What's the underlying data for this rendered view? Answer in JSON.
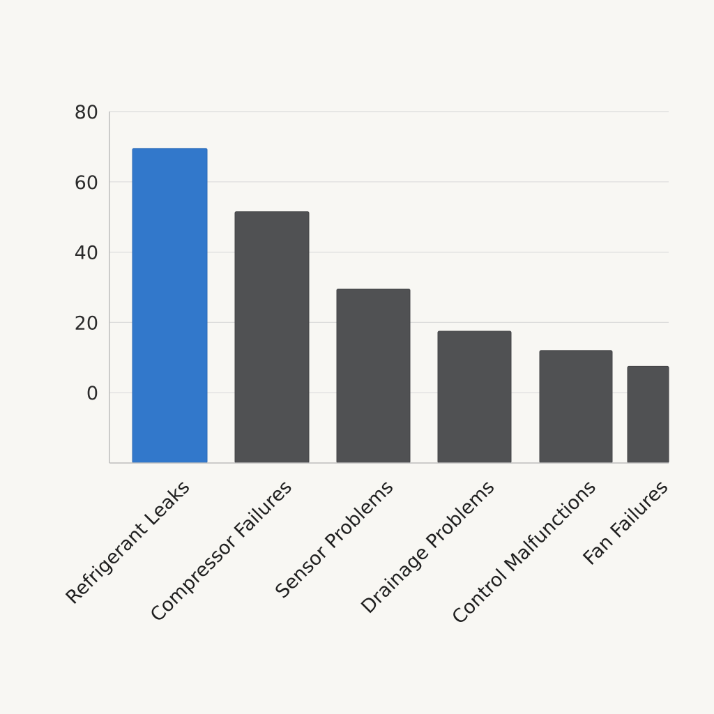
{
  "chart_data": {
    "type": "bar",
    "title": "",
    "xlabel": "",
    "ylabel": "",
    "categories": [
      "Refrigerant Leaks",
      "Compressor Failures",
      "Sensor Problems",
      "Drainage Problems",
      "Control Malfunctions",
      "Fan Failures"
    ],
    "values": [
      69.5,
      51.5,
      29.5,
      17.5,
      12,
      7.5
    ],
    "ylim": [
      -20,
      80
    ],
    "yticks": [
      0,
      20,
      40,
      60,
      80
    ],
    "grid": true,
    "legend": "none",
    "highlight_index": 0,
    "colors": {
      "highlight": "#3278cb",
      "default": "#505153",
      "grid": "#dcdcdc",
      "axis": "#bdbdbd",
      "background": "#f8f7f3"
    }
  }
}
